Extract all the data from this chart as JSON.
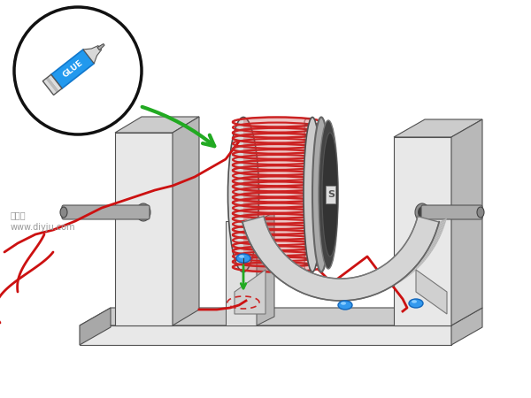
{
  "background_color": "#ffffff",
  "watermark_text": "聚巧网\nwww.diyju.com",
  "watermark_color": "#999999",
  "watermark_fontsize": 7,
  "gray_light": "#e0e0e0",
  "gray_mid": "#b8b8b8",
  "gray_dark": "#909090",
  "gray_darker": "#505050",
  "gray_base": "#cccccc",
  "gray_shadow": "#a8a8a8",
  "gray_highlight": "#e8e8e8",
  "red_wire": "#cc1111",
  "green_arrow": "#22aa22",
  "blue_dot": "#3399ee",
  "blue_dot_dark": "#1166bb",
  "blue_dot_light": "#88ccff",
  "circle_outline": "#111111",
  "glue_blue": "#2299ee",
  "glue_gray": "#cccccc",
  "magnet_dark": "#444444",
  "magnet_rim": "#aaaaaa",
  "coil_red": "#cc2222",
  "dashed_red": "#cc2222",
  "arch_color": "#d0d0d0",
  "arch_edge": "#888888"
}
